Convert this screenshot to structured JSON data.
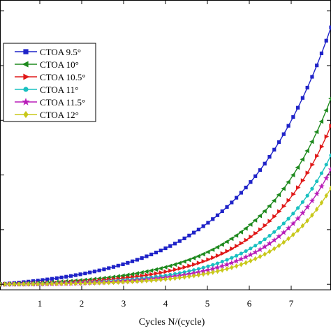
{
  "chart_data": {
    "type": "line",
    "xlabel": "Cycles N/(cycle)",
    "ylabel": "",
    "xlim": [
      0.05,
      7.95
    ],
    "ylim": [
      -0.05,
      2.6
    ],
    "xticks": [
      1,
      2,
      3,
      4,
      5,
      6,
      7
    ],
    "xtick_labels": [
      "1",
      "2",
      "3",
      "4",
      "5",
      "6",
      "7"
    ],
    "yticks": [
      0.0,
      0.5,
      1.0,
      1.5,
      2.0,
      2.5
    ],
    "grid": false,
    "legend_position": "top-left",
    "series": [
      {
        "name": "CTOA 9.5°",
        "color": "#1f23c8",
        "marker": "square",
        "k": 0.46,
        "end": 2.35
      },
      {
        "name": "CTOA 10°",
        "color": "#1e8a1e",
        "marker": "triangle-left",
        "k": 0.58,
        "end": 1.7
      },
      {
        "name": "CTOA 10.5°",
        "color": "#e01818",
        "marker": "triangle-right",
        "k": 0.62,
        "end": 1.45
      },
      {
        "name": "CTOA 11°",
        "color": "#19c0c0",
        "marker": "circle",
        "k": 0.66,
        "end": 1.18
      },
      {
        "name": "CTOA 11.5°",
        "color": "#b81cb8",
        "marker": "star",
        "k": 0.7,
        "end": 1.05
      },
      {
        "name": "CTOA 12°",
        "color": "#c8c81a",
        "marker": "diamond",
        "k": 0.73,
        "end": 0.88
      }
    ]
  }
}
